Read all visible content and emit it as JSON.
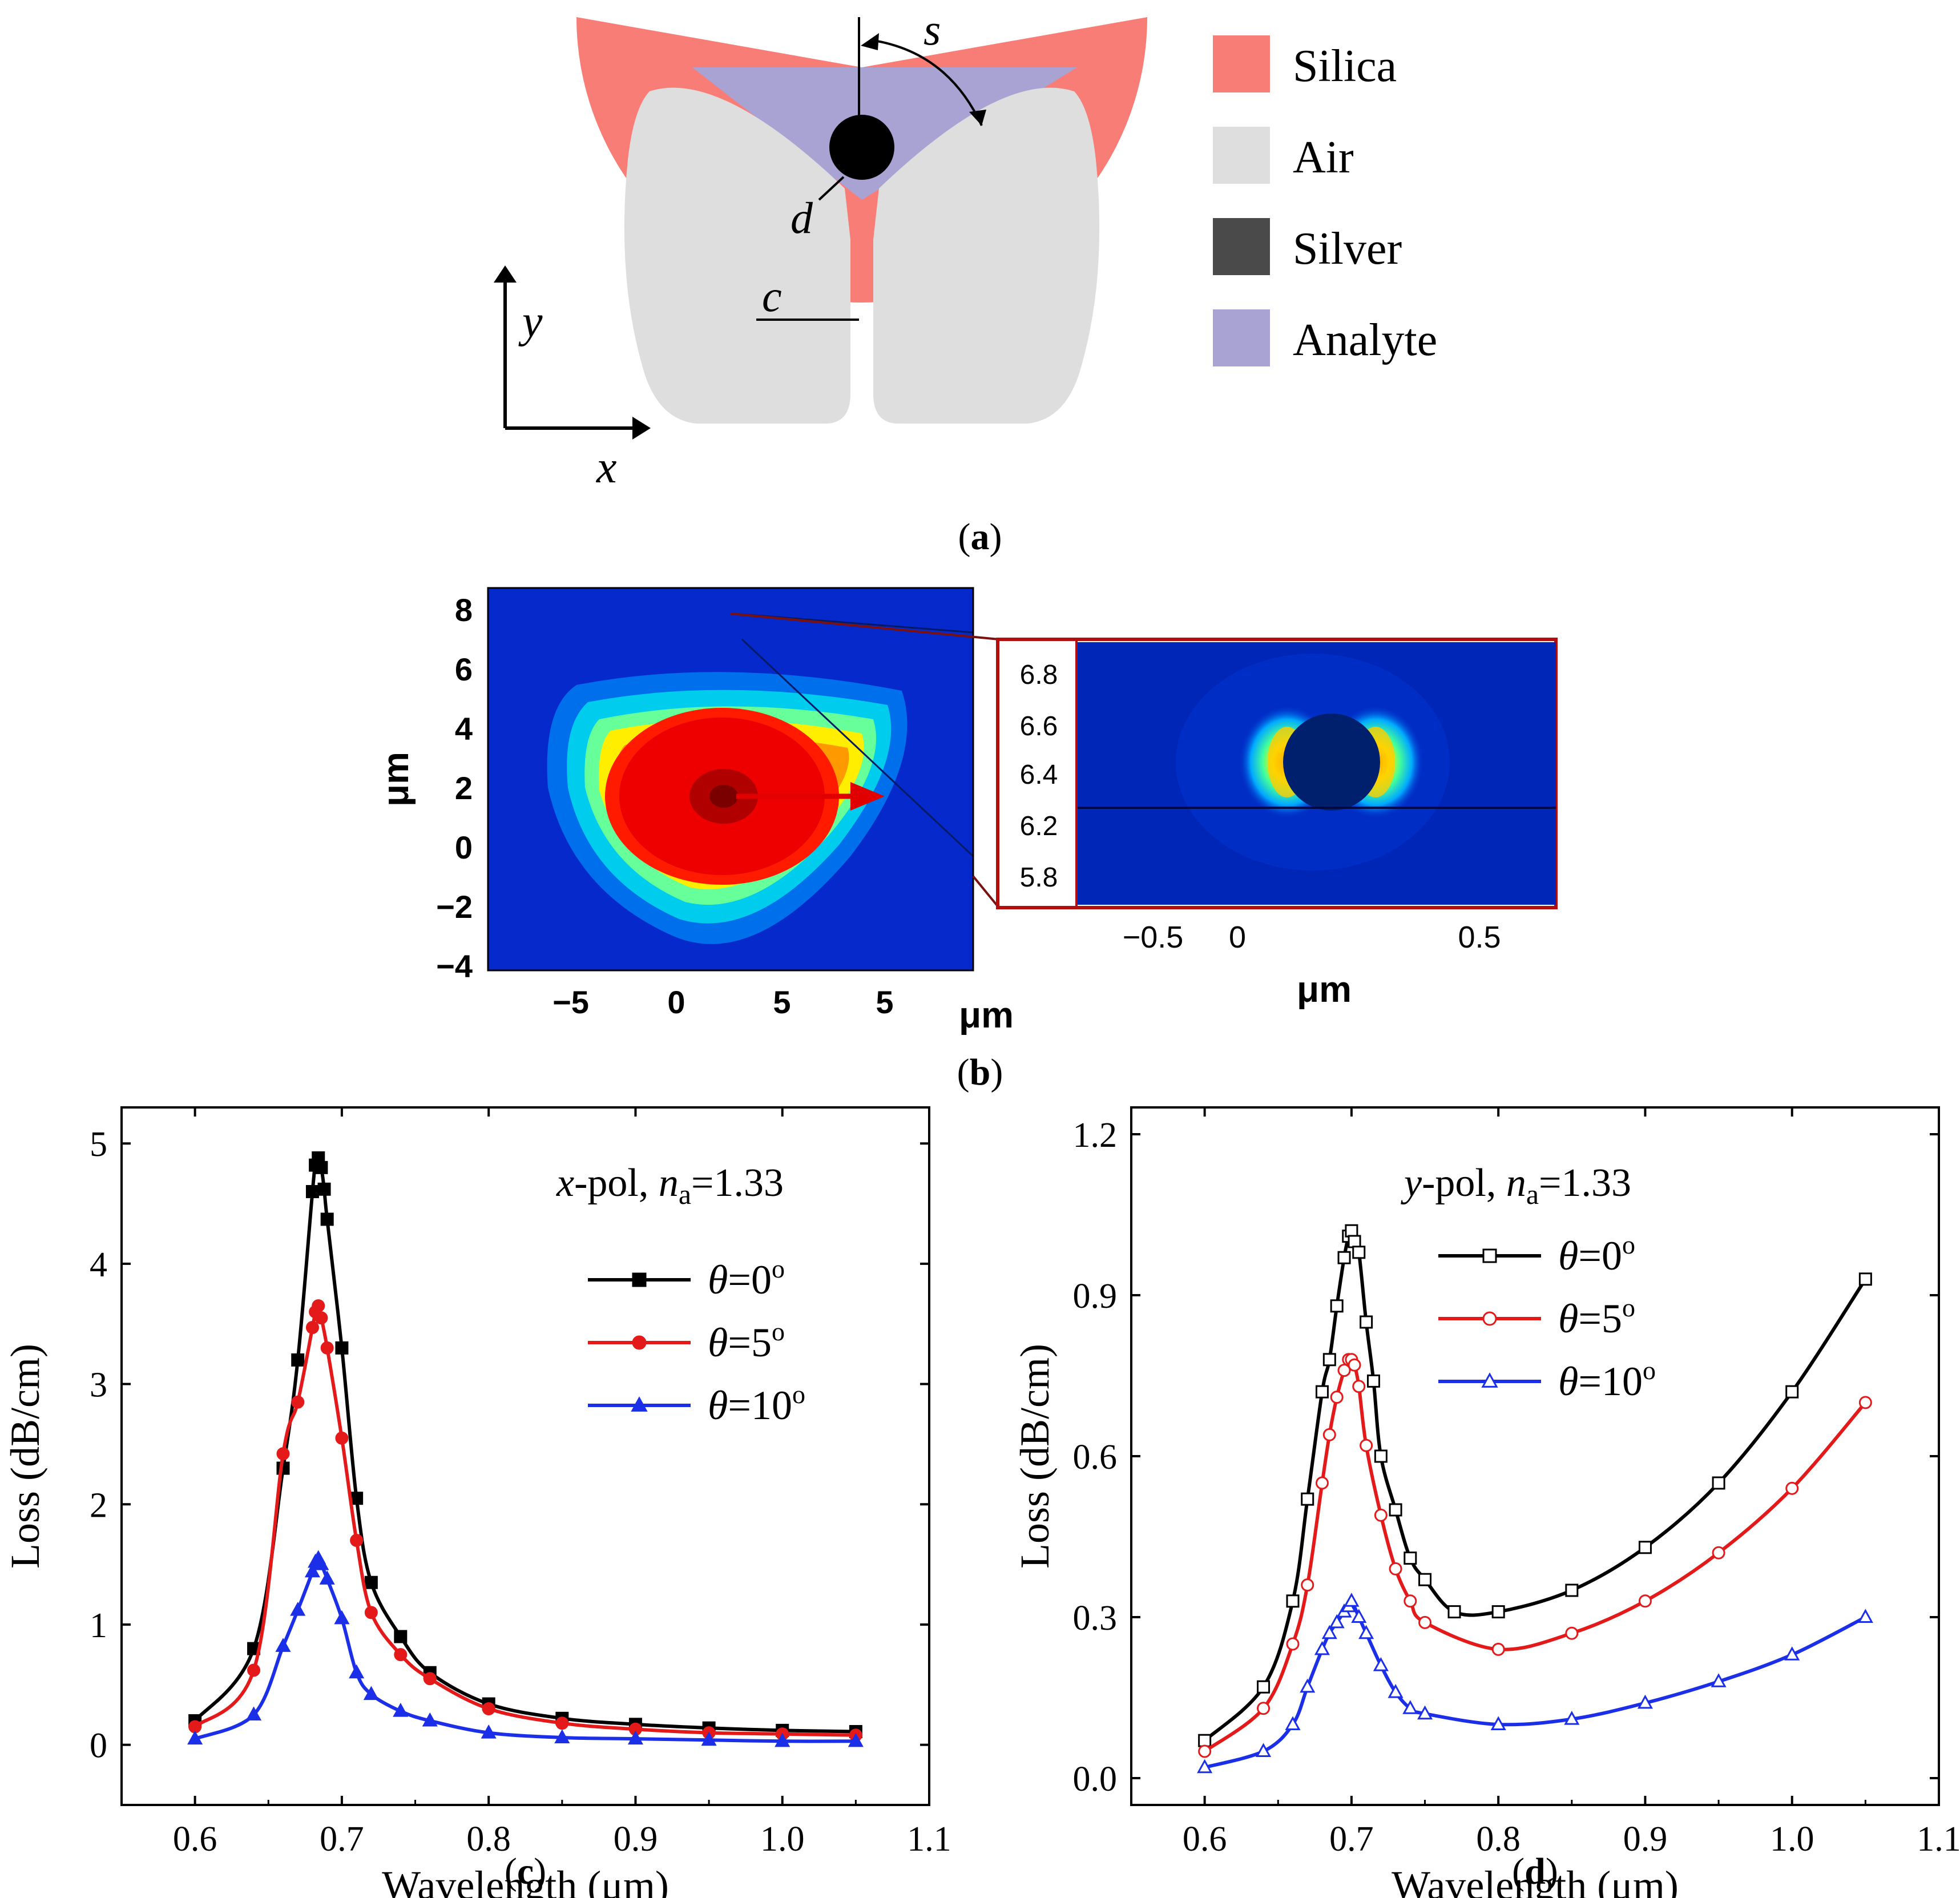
{
  "panel_a": {
    "caption_letter": "a",
    "labels": {
      "s": "s",
      "d": "d",
      "c": "c",
      "x_axis": "x",
      "y_axis": "y"
    },
    "legend": [
      {
        "label": "Silica",
        "color": "#f97d77"
      },
      {
        "label": "Air",
        "color": "#dedede"
      },
      {
        "label": "Silver",
        "color": "#4a4a4a"
      },
      {
        "label": "Analyte",
        "color": "#a9a3d3"
      }
    ]
  },
  "panel_b": {
    "caption_letter": "b",
    "main_map": {
      "y_label": "μm",
      "x_label": "μm",
      "y_ticks": [
        "8",
        "6",
        "4",
        "2",
        "0",
        "−2",
        "−4"
      ],
      "x_ticks": [
        "−5",
        "0",
        "5",
        "5"
      ]
    },
    "inset_map": {
      "x_label": "μm",
      "y_ticks": [
        "6.8",
        "6.6",
        "6.4",
        "6.2",
        "5.8"
      ],
      "x_ticks": [
        "−0.5",
        "0",
        "0.5"
      ]
    }
  },
  "chart_data": [
    {
      "type": "line",
      "panel": "c",
      "caption_letter": "c",
      "annotation": {
        "pol": "x",
        "pol_suffix": "-pol, ",
        "n_sym": "n",
        "n_sub": "a",
        "n_val": "=1.33"
      },
      "xlabel": "Wavelength (μm)",
      "ylabel": "Loss (dB/cm)",
      "xlim": [
        0.55,
        1.1
      ],
      "ylim": [
        -0.5,
        5.3
      ],
      "xticks": [
        0.6,
        0.7,
        0.8,
        0.9,
        1.0,
        1.1
      ],
      "xtick_labels": [
        "0.6",
        "0.7",
        "0.8",
        "0.9",
        "1.0",
        "1.1"
      ],
      "yticks": [
        0,
        1,
        2,
        3,
        4,
        5
      ],
      "ytick_labels": [
        "0",
        "1",
        "2",
        "3",
        "4",
        "5"
      ],
      "series": [
        {
          "name": "θ=0°",
          "theta": "0",
          "color": "#000000",
          "marker": "square",
          "filled": true,
          "x": [
            0.6,
            0.64,
            0.66,
            0.67,
            0.68,
            0.682,
            0.684,
            0.686,
            0.688,
            0.69,
            0.7,
            0.71,
            0.72,
            0.74,
            0.76,
            0.8,
            0.85,
            0.9,
            0.95,
            1.0,
            1.05
          ],
          "y": [
            0.2,
            0.8,
            2.3,
            3.2,
            4.6,
            4.82,
            4.88,
            4.8,
            4.62,
            4.37,
            3.3,
            2.05,
            1.35,
            0.9,
            0.6,
            0.34,
            0.22,
            0.17,
            0.14,
            0.12,
            0.11
          ]
        },
        {
          "name": "θ=5°",
          "theta": "5",
          "color": "#e41a1a",
          "marker": "circle",
          "filled": true,
          "x": [
            0.6,
            0.64,
            0.66,
            0.67,
            0.68,
            0.682,
            0.684,
            0.686,
            0.69,
            0.7,
            0.71,
            0.72,
            0.74,
            0.76,
            0.8,
            0.85,
            0.9,
            0.95,
            1.0,
            1.05
          ],
          "y": [
            0.15,
            0.62,
            2.42,
            2.85,
            3.47,
            3.6,
            3.65,
            3.55,
            3.3,
            2.55,
            1.7,
            1.1,
            0.75,
            0.55,
            0.3,
            0.18,
            0.13,
            0.1,
            0.09,
            0.08
          ]
        },
        {
          "name": "θ=10°",
          "theta": "10",
          "color": "#1b2ee8",
          "marker": "triangle",
          "filled": true,
          "x": [
            0.6,
            0.64,
            0.66,
            0.67,
            0.68,
            0.682,
            0.684,
            0.686,
            0.69,
            0.7,
            0.71,
            0.72,
            0.74,
            0.76,
            0.8,
            0.85,
            0.9,
            0.95,
            1.0,
            1.05
          ],
          "y": [
            0.05,
            0.25,
            0.82,
            1.12,
            1.44,
            1.52,
            1.55,
            1.5,
            1.38,
            1.05,
            0.6,
            0.42,
            0.28,
            0.2,
            0.1,
            0.06,
            0.05,
            0.04,
            0.03,
            0.03
          ]
        }
      ]
    },
    {
      "type": "line",
      "panel": "d",
      "caption_letter": "d",
      "annotation": {
        "pol": "y",
        "pol_suffix": "-pol, ",
        "n_sym": "n",
        "n_sub": "a",
        "n_val": "=1.33"
      },
      "xlabel": "Wavelength (μm)",
      "ylabel": "Loss (dB/cm)",
      "xlim": [
        0.55,
        1.1
      ],
      "ylim": [
        -0.05,
        1.25
      ],
      "xticks": [
        0.6,
        0.7,
        0.8,
        0.9,
        1.0,
        1.1
      ],
      "xtick_labels": [
        "0.6",
        "0.7",
        "0.8",
        "0.9",
        "1.0",
        "1.1"
      ],
      "yticks": [
        0.0,
        0.3,
        0.6,
        0.9,
        1.2
      ],
      "ytick_labels": [
        "0.0",
        "0.3",
        "0.6",
        "0.9",
        "1.2"
      ],
      "series": [
        {
          "name": "θ=0°",
          "theta": "0",
          "color": "#000000",
          "marker": "square",
          "filled": false,
          "x": [
            0.6,
            0.64,
            0.66,
            0.67,
            0.68,
            0.685,
            0.69,
            0.695,
            0.698,
            0.7,
            0.702,
            0.705,
            0.71,
            0.715,
            0.72,
            0.73,
            0.74,
            0.75,
            0.77,
            0.8,
            0.85,
            0.9,
            0.95,
            1.0,
            1.05
          ],
          "y": [
            0.07,
            0.17,
            0.33,
            0.52,
            0.72,
            0.78,
            0.88,
            0.97,
            1.01,
            1.02,
            1.0,
            0.98,
            0.85,
            0.74,
            0.6,
            0.5,
            0.41,
            0.37,
            0.31,
            0.31,
            0.35,
            0.43,
            0.55,
            0.72,
            0.93
          ]
        },
        {
          "name": "θ=5°",
          "theta": "5",
          "color": "#e41a1a",
          "marker": "circle",
          "filled": false,
          "x": [
            0.6,
            0.64,
            0.66,
            0.67,
            0.68,
            0.685,
            0.69,
            0.695,
            0.698,
            0.7,
            0.702,
            0.705,
            0.71,
            0.72,
            0.73,
            0.74,
            0.75,
            0.8,
            0.85,
            0.9,
            0.95,
            1.0,
            1.05
          ],
          "y": [
            0.05,
            0.13,
            0.25,
            0.36,
            0.55,
            0.64,
            0.71,
            0.76,
            0.78,
            0.78,
            0.77,
            0.73,
            0.62,
            0.49,
            0.39,
            0.33,
            0.29,
            0.24,
            0.27,
            0.33,
            0.42,
            0.54,
            0.7
          ]
        },
        {
          "name": "θ=10°",
          "theta": "10",
          "color": "#1b2ee8",
          "marker": "triangle",
          "filled": false,
          "x": [
            0.6,
            0.64,
            0.66,
            0.67,
            0.68,
            0.685,
            0.69,
            0.695,
            0.698,
            0.7,
            0.705,
            0.71,
            0.72,
            0.73,
            0.74,
            0.75,
            0.8,
            0.85,
            0.9,
            0.95,
            1.0,
            1.05
          ],
          "y": [
            0.02,
            0.05,
            0.1,
            0.17,
            0.24,
            0.27,
            0.29,
            0.31,
            0.32,
            0.33,
            0.3,
            0.27,
            0.21,
            0.16,
            0.13,
            0.12,
            0.1,
            0.11,
            0.14,
            0.18,
            0.23,
            0.3
          ]
        }
      ]
    }
  ]
}
